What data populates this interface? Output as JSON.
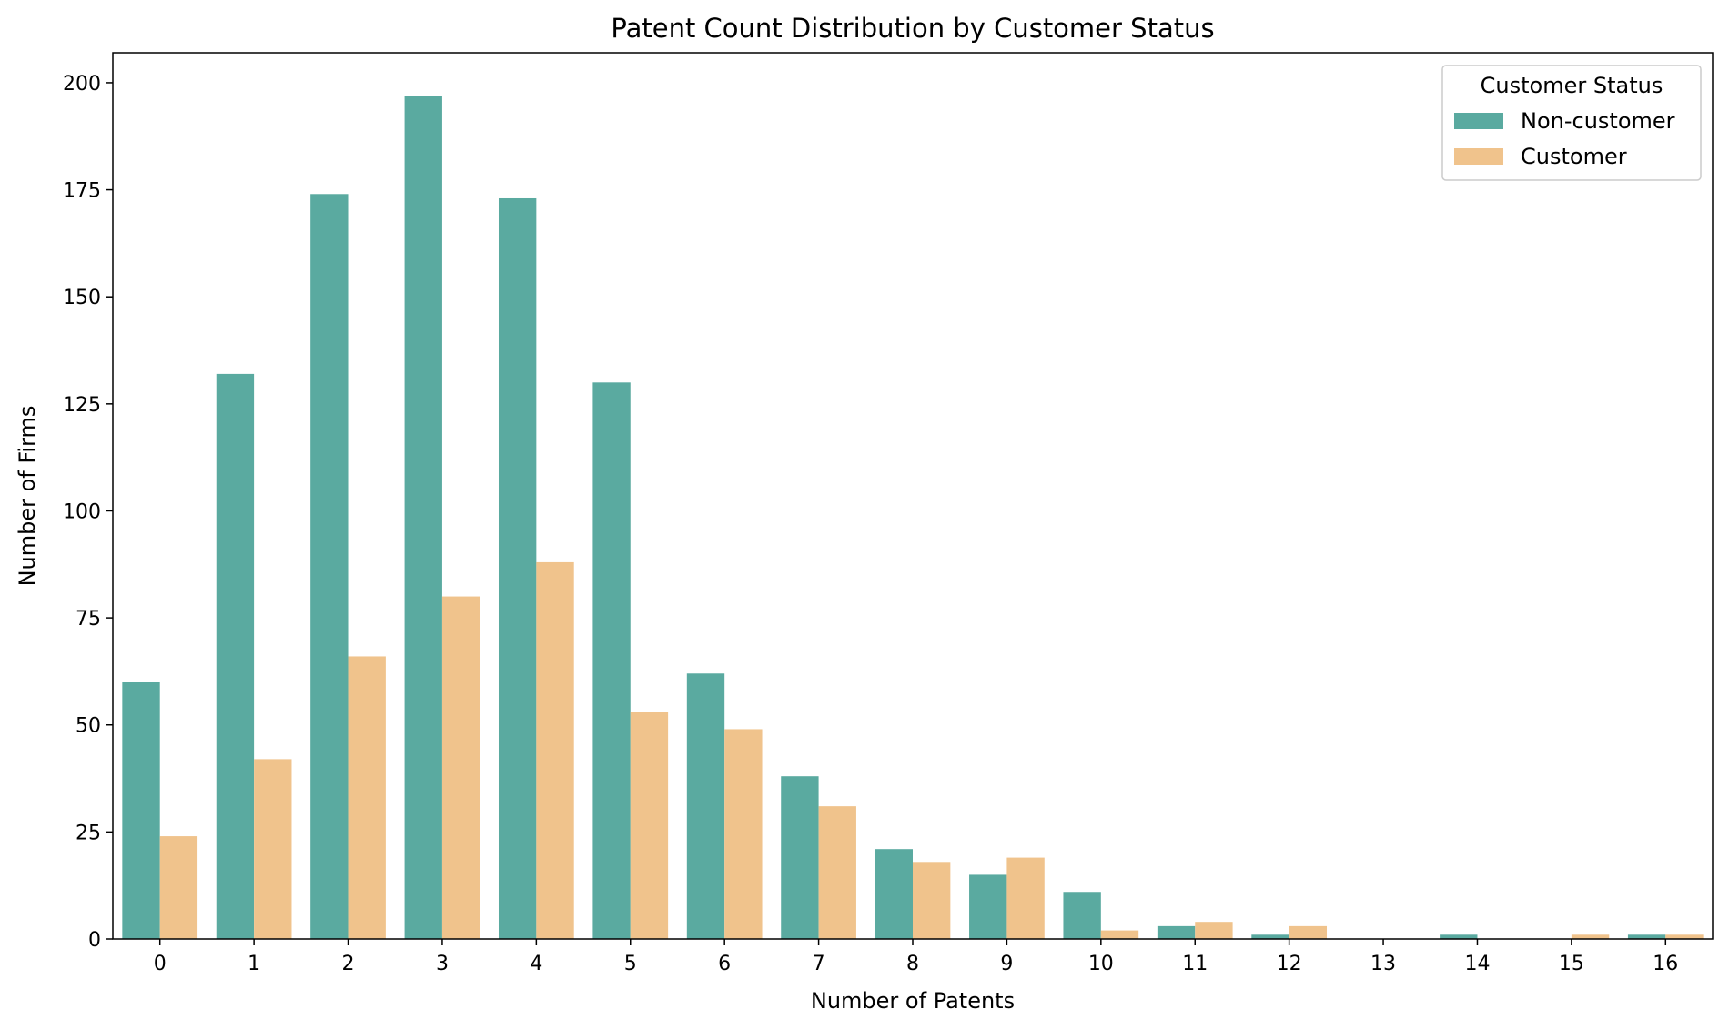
{
  "chart_data": {
    "type": "bar",
    "title": "Patent Count Distribution by Customer Status",
    "xlabel": "Number of Patents",
    "ylabel": "Number of Firms",
    "categories": [
      "0",
      "1",
      "2",
      "3",
      "4",
      "5",
      "6",
      "7",
      "8",
      "9",
      "10",
      "11",
      "12",
      "13",
      "14",
      "15",
      "16"
    ],
    "series": [
      {
        "name": "Non-customer",
        "color": "#5aaaa0",
        "values": [
          60,
          132,
          174,
          197,
          173,
          130,
          62,
          38,
          21,
          15,
          11,
          3,
          1,
          0,
          1,
          0,
          1
        ]
      },
      {
        "name": "Customer",
        "color": "#f0c38c",
        "values": [
          24,
          42,
          66,
          80,
          88,
          53,
          49,
          31,
          18,
          19,
          2,
          4,
          3,
          0,
          0,
          1,
          1
        ]
      }
    ],
    "yticks": [
      0,
      25,
      50,
      75,
      100,
      125,
      150,
      175,
      200
    ],
    "ylim": [
      0,
      207
    ],
    "grid": false,
    "legend": {
      "title": "Customer Status",
      "position": "top-right"
    }
  }
}
